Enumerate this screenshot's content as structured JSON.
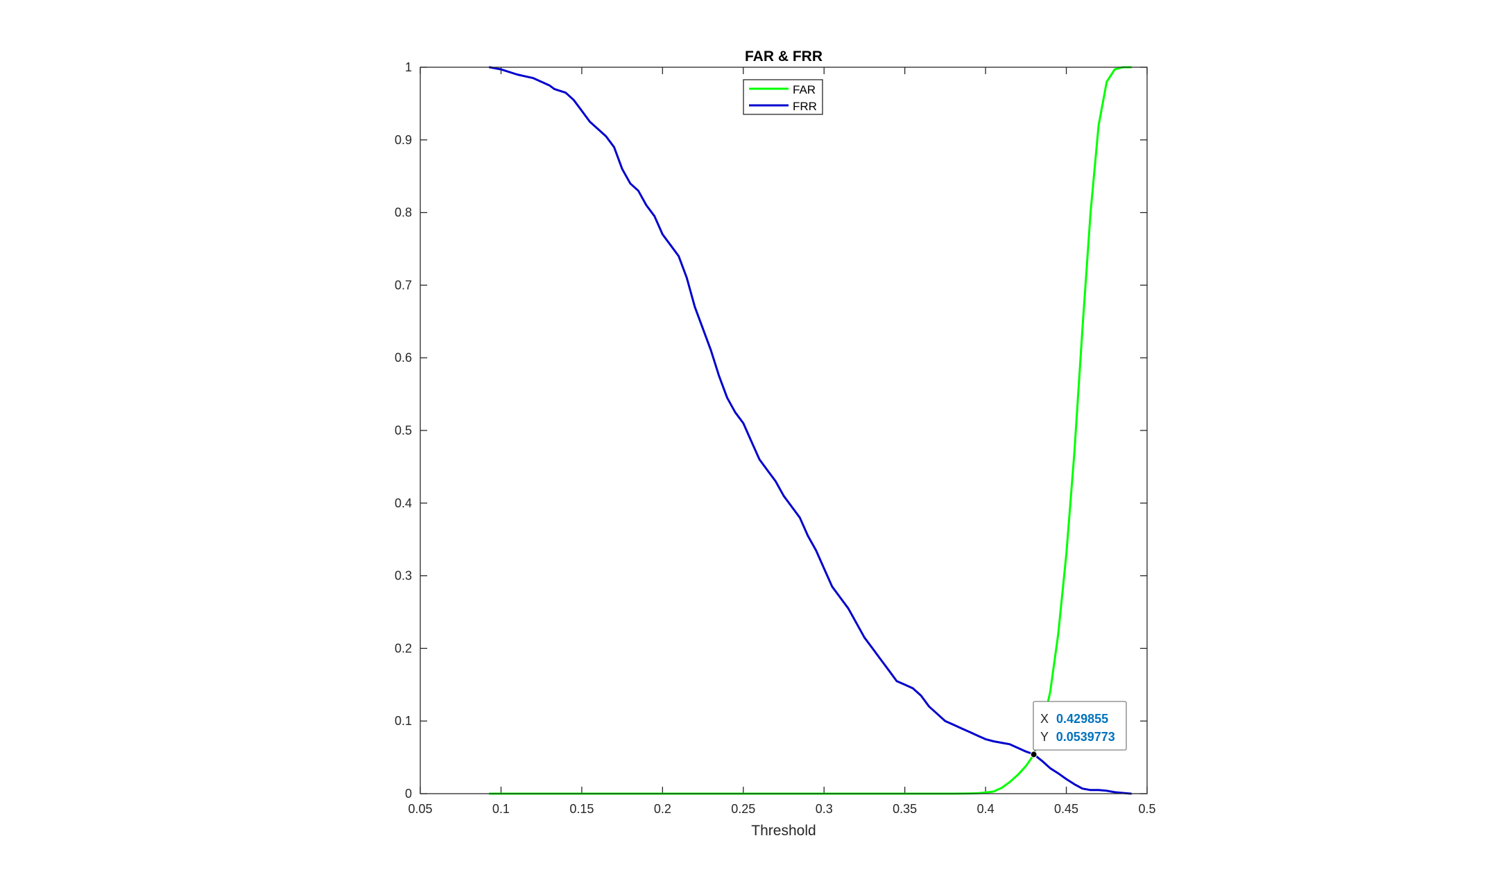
{
  "chart_data": {
    "type": "line",
    "title": "FAR & FRR",
    "xlabel": "Threshold",
    "ylabel": "",
    "xlim": [
      0.05,
      0.5
    ],
    "ylim": [
      0,
      1
    ],
    "xticks": [
      0.05,
      0.1,
      0.15,
      0.2,
      0.25,
      0.3,
      0.35,
      0.4,
      0.45,
      0.5
    ],
    "xtick_labels": [
      "0.05",
      "0.1",
      "0.15",
      "0.2",
      "0.25",
      "0.3",
      "0.35",
      "0.4",
      "0.45",
      "0.5"
    ],
    "yticks": [
      0,
      0.1,
      0.2,
      0.3,
      0.4,
      0.5,
      0.6,
      0.7,
      0.8,
      0.9,
      1
    ],
    "ytick_labels": [
      "0",
      "0.1",
      "0.2",
      "0.3",
      "0.4",
      "0.5",
      "0.6",
      "0.7",
      "0.8",
      "0.9",
      "1"
    ],
    "grid": false,
    "legend_position": "top-center",
    "series": [
      {
        "name": "FAR",
        "color": "#00ff00",
        "x": [
          0.093,
          0.2,
          0.3,
          0.38,
          0.39,
          0.395,
          0.4,
          0.405,
          0.41,
          0.415,
          0.42,
          0.425,
          0.43,
          0.435,
          0.44,
          0.445,
          0.45,
          0.455,
          0.46,
          0.465,
          0.47,
          0.475,
          0.48,
          0.485,
          0.49
        ],
        "y": [
          0,
          0,
          0,
          0,
          0.0003,
          0.0006,
          0.0015,
          0.003,
          0.008,
          0.016,
          0.026,
          0.038,
          0.054,
          0.09,
          0.14,
          0.22,
          0.33,
          0.47,
          0.64,
          0.8,
          0.92,
          0.98,
          0.997,
          1,
          1
        ]
      },
      {
        "name": "FRR",
        "color": "#0000cd",
        "x": [
          0.093,
          0.1,
          0.11,
          0.12,
          0.13,
          0.133,
          0.14,
          0.145,
          0.15,
          0.155,
          0.16,
          0.165,
          0.17,
          0.175,
          0.18,
          0.185,
          0.19,
          0.195,
          0.2,
          0.205,
          0.21,
          0.215,
          0.22,
          0.225,
          0.23,
          0.235,
          0.24,
          0.245,
          0.25,
          0.255,
          0.26,
          0.265,
          0.27,
          0.275,
          0.28,
          0.285,
          0.29,
          0.295,
          0.3,
          0.305,
          0.31,
          0.315,
          0.32,
          0.325,
          0.33,
          0.335,
          0.34,
          0.345,
          0.35,
          0.355,
          0.36,
          0.365,
          0.37,
          0.375,
          0.38,
          0.385,
          0.39,
          0.395,
          0.4,
          0.405,
          0.41,
          0.415,
          0.42,
          0.425,
          0.43,
          0.435,
          0.44,
          0.445,
          0.45,
          0.455,
          0.46,
          0.465,
          0.47,
          0.475,
          0.48,
          0.485,
          0.49
        ],
        "y": [
          1,
          0.997,
          0.99,
          0.985,
          0.975,
          0.97,
          0.965,
          0.955,
          0.94,
          0.925,
          0.915,
          0.905,
          0.89,
          0.86,
          0.84,
          0.83,
          0.81,
          0.795,
          0.77,
          0.755,
          0.74,
          0.71,
          0.67,
          0.64,
          0.61,
          0.575,
          0.545,
          0.525,
          0.51,
          0.485,
          0.46,
          0.445,
          0.43,
          0.41,
          0.395,
          0.38,
          0.355,
          0.335,
          0.31,
          0.285,
          0.27,
          0.255,
          0.235,
          0.215,
          0.2,
          0.185,
          0.17,
          0.155,
          0.15,
          0.145,
          0.135,
          0.12,
          0.11,
          0.1,
          0.095,
          0.09,
          0.085,
          0.08,
          0.075,
          0.072,
          0.07,
          0.068,
          0.063,
          0.058,
          0.054,
          0.045,
          0.035,
          0.028,
          0.02,
          0.013,
          0.007,
          0.005,
          0.005,
          0.004,
          0.002,
          0.001,
          0
        ]
      }
    ],
    "datatip": {
      "x_label": "X",
      "x_value": "0.429855",
      "y_label": "Y",
      "y_value": "0.0539773",
      "x": 0.429855,
      "y": 0.0539773
    }
  },
  "colors": {
    "far": "#00ff00",
    "frr": "#0000cd",
    "axis": "#262626",
    "datatip_value": "#0072bd"
  }
}
